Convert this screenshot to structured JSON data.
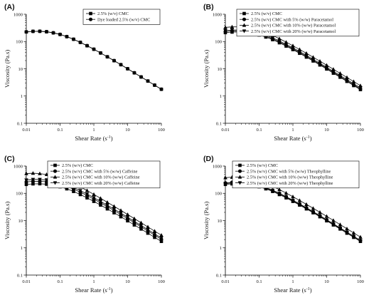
{
  "chart_data": [
    {
      "type": "line",
      "panel_label": "(A)",
      "xlabel": "Shear Rate (s",
      "xlabel_sup": "-1",
      "xlabel_end": ")",
      "ylabel": "Viscosity (Pa.s)",
      "xscale": "log",
      "yscale": "log",
      "xlim": [
        0.01,
        100
      ],
      "ylim": [
        0.1,
        1000
      ],
      "xticks": [
        "0.01",
        "0.1",
        "1",
        "10",
        "100"
      ],
      "yticks": [
        "0.1",
        "1",
        "10",
        "100",
        "1000"
      ],
      "grid": false,
      "legend_position": "top-right",
      "series": [
        {
          "name": "2.5% (w/v) CMC",
          "marker": "square",
          "x": [
            0.01,
            0.0158,
            0.0251,
            0.0398,
            0.0631,
            0.1,
            0.158,
            0.251,
            0.398,
            0.631,
            1,
            1.58,
            2.51,
            3.98,
            6.31,
            10,
            15.8,
            25.1,
            39.8,
            63.1,
            100
          ],
          "y": [
            225,
            236,
            237,
            228,
            208,
            182,
            151,
            121,
            93,
            70,
            52,
            38,
            27.5,
            19.8,
            14.1,
            10,
            7.1,
            5.0,
            3.55,
            2.5,
            1.77
          ]
        },
        {
          "name": "Dye loaded 2.5% (w/v) CMC",
          "marker": "circle",
          "x": [
            0.01,
            0.0158,
            0.0251,
            0.0398,
            0.0631,
            0.1,
            0.158,
            0.251,
            0.398,
            0.631,
            1,
            1.58,
            2.51,
            3.98,
            6.31,
            10,
            15.8,
            25.1,
            39.8,
            63.1,
            100
          ],
          "y": [
            225,
            236,
            237,
            228,
            208,
            182,
            151,
            121,
            93,
            70,
            52,
            38,
            27.5,
            19.8,
            14.1,
            10,
            7.1,
            5.0,
            3.55,
            2.5,
            1.77
          ]
        }
      ]
    },
    {
      "type": "line",
      "panel_label": "(B)",
      "xlabel": "Shear Rate (s",
      "xlabel_sup": "-1",
      "xlabel_end": ")",
      "ylabel": "Viscosity (Pa.s)",
      "xscale": "log",
      "yscale": "log",
      "xlim": [
        0.01,
        100
      ],
      "ylim": [
        0.1,
        1000
      ],
      "xticks": [
        "0.01",
        "0.1",
        "1",
        "10",
        "100"
      ],
      "yticks": [
        "0.1",
        "1",
        "10",
        "100",
        "1000"
      ],
      "grid": false,
      "legend_position": "top-right",
      "series": [
        {
          "name": "2.5% (w/v) CMC",
          "marker": "square",
          "x": [
            0.01,
            0.0158,
            0.0251,
            0.0398,
            0.0631,
            0.1,
            0.158,
            0.251,
            0.398,
            0.631,
            1,
            1.58,
            2.51,
            3.98,
            6.31,
            10,
            15.8,
            25.1,
            39.8,
            63.1,
            100
          ],
          "y": [
            212,
            222,
            224,
            216,
            198,
            174,
            146,
            117,
            90,
            68,
            50.5,
            37,
            26.8,
            19.3,
            13.8,
            9.8,
            6.9,
            4.9,
            3.45,
            2.42,
            1.72
          ]
        },
        {
          "name": "2.5% (w/v) CMC with 5% (w/w) Paracetamol",
          "marker": "circle",
          "x": [
            0.01,
            0.0158,
            0.0251,
            0.0398,
            0.0631,
            0.1,
            0.158,
            0.251,
            0.398,
            0.631,
            1,
            1.58,
            2.51,
            3.98,
            6.31,
            10,
            15.8,
            25.1,
            39.8,
            63.1,
            100
          ],
          "y": [
            232,
            243,
            245,
            236,
            216,
            189,
            157,
            126,
            97,
            73,
            54,
            39.5,
            28.6,
            20.6,
            14.7,
            10.4,
            7.4,
            5.2,
            3.66,
            2.58,
            1.82
          ]
        },
        {
          "name": "2.5% (w/v) CMC with 10% (w/w) Paracetamol",
          "marker": "triangle-up",
          "x": [
            0.01,
            0.0158,
            0.0251,
            0.0398,
            0.0631,
            0.1,
            0.158,
            0.251,
            0.398,
            0.631,
            1,
            1.58,
            2.51,
            3.98,
            6.31,
            10,
            15.8,
            25.1,
            39.8,
            63.1,
            100
          ],
          "y": [
            330,
            345,
            344,
            328,
            297,
            257,
            211,
            167,
            127,
            95,
            70,
            51,
            37,
            26.5,
            19,
            13.5,
            9.6,
            6.8,
            4.8,
            3.4,
            2.4
          ]
        },
        {
          "name": "2.5% (w/v) CMC with 20% (w/w) Paracetamol",
          "marker": "triangle-down",
          "x": [
            0.01,
            0.0158,
            0.0251,
            0.0398,
            0.0631,
            0.1,
            0.158,
            0.251,
            0.398,
            0.631,
            1,
            1.58,
            2.51,
            3.98,
            6.31,
            10,
            15.8,
            25.1,
            39.8,
            63.1,
            100
          ],
          "y": [
            252,
            264,
            265,
            256,
            234,
            205,
            170,
            136,
            105,
            79,
            58.5,
            42.8,
            31,
            22.3,
            15.9,
            11.3,
            8.0,
            5.65,
            4.0,
            2.8,
            2.0
          ]
        }
      ]
    },
    {
      "type": "line",
      "panel_label": "(C)",
      "xlabel": "Shear Rate (s",
      "xlabel_sup": "-1",
      "xlabel_end": ")",
      "ylabel": "Viscosity (Pa.s)",
      "xscale": "log",
      "yscale": "log",
      "xlim": [
        0.01,
        100
      ],
      "ylim": [
        0.1,
        1000
      ],
      "xticks": [
        "0.01",
        "0.1",
        "1",
        "10",
        "100"
      ],
      "yticks": [
        "0.1",
        "1",
        "10",
        "100",
        "1000"
      ],
      "grid": false,
      "legend_position": "top-right",
      "series": [
        {
          "name": "2.5% (w/v) CMC",
          "marker": "square",
          "x": [
            0.01,
            0.0158,
            0.0251,
            0.0398,
            0.0631,
            0.1,
            0.158,
            0.251,
            0.398,
            0.631,
            1,
            1.58,
            2.51,
            3.98,
            6.31,
            10,
            15.8,
            25.1,
            39.8,
            63.1,
            100
          ],
          "y": [
            212,
            222,
            224,
            216,
            198,
            174,
            146,
            117,
            90,
            68,
            50.5,
            37,
            26.8,
            19.3,
            13.8,
            9.8,
            6.9,
            4.9,
            3.45,
            2.42,
            1.72
          ]
        },
        {
          "name": "2.5% (w/v) CMC with 5% (w/w) Caffeine",
          "marker": "circle",
          "x": [
            0.01,
            0.0158,
            0.0251,
            0.0398,
            0.0631,
            0.1,
            0.158,
            0.251,
            0.398,
            0.631,
            1,
            1.58,
            2.51,
            3.98,
            6.31,
            10,
            15.8,
            25.1,
            39.8,
            63.1,
            100
          ],
          "y": [
            262,
            275,
            276,
            266,
            243,
            213,
            177,
            142,
            110,
            83,
            61,
            44.7,
            32.4,
            23.3,
            16.6,
            11.8,
            8.4,
            5.9,
            4.17,
            2.93,
            2.06
          ]
        },
        {
          "name": "2.5% (w/v) CMC with 10% (w/w) Caffeine",
          "marker": "triangle-up",
          "x": [
            0.01,
            0.0158,
            0.0251,
            0.0398,
            0.0631,
            0.1,
            0.158,
            0.251,
            0.398,
            0.631,
            1,
            1.58,
            2.51,
            3.98,
            6.31,
            10,
            15.8,
            25.1,
            39.8,
            63.1,
            100
          ],
          "y": [
            530,
            545,
            528,
            490,
            432,
            364,
            293,
            227,
            171,
            126,
            91,
            65.5,
            46.8,
            33.3,
            23.6,
            16.7,
            11.8,
            8.3,
            5.85,
            4.1,
            2.9
          ]
        },
        {
          "name": "2.5% (w/v) CMC with 20% (w/w) Caffeine",
          "marker": "triangle-down",
          "x": [
            0.01,
            0.0158,
            0.0251,
            0.0398,
            0.0631,
            0.1,
            0.158,
            0.251,
            0.398,
            0.631,
            1,
            1.58,
            2.51,
            3.98,
            6.31,
            10,
            15.8,
            25.1,
            39.8,
            63.1,
            100
          ],
          "y": [
            308,
            322,
            322,
            309,
            281,
            245,
            203,
            162,
            125,
            94,
            69,
            50.5,
            36.5,
            26.2,
            18.7,
            13.3,
            9.4,
            6.6,
            4.66,
            3.27,
            2.3
          ]
        }
      ]
    },
    {
      "type": "line",
      "panel_label": "(D)",
      "xlabel": "Shear Rate (s",
      "xlabel_sup": "-1",
      "xlabel_end": ")",
      "ylabel": "Viscosity (Pa.s)",
      "xscale": "log",
      "yscale": "log",
      "xlim": [
        0.01,
        100
      ],
      "ylim": [
        0.1,
        1000
      ],
      "xticks": [
        "0.01",
        "0.1",
        "1",
        "10",
        "100"
      ],
      "yticks": [
        "0.1",
        "1",
        "10",
        "100",
        "1000"
      ],
      "grid": false,
      "legend_position": "top-right",
      "series": [
        {
          "name": "2.5% (w/v) CMC",
          "marker": "square",
          "x": [
            0.01,
            0.0158,
            0.0251,
            0.0398,
            0.0631,
            0.1,
            0.158,
            0.251,
            0.398,
            0.631,
            1,
            1.58,
            2.51,
            3.98,
            6.31,
            10,
            15.8,
            25.1,
            39.8,
            63.1,
            100
          ],
          "y": [
            212,
            222,
            224,
            216,
            198,
            174,
            146,
            117,
            90,
            68,
            50.5,
            37,
            26.8,
            19.3,
            13.8,
            9.8,
            6.9,
            4.9,
            3.45,
            2.42,
            1.72
          ]
        },
        {
          "name": "2.5% (w/v) CMC with 5% (w/w) Theophylline",
          "marker": "circle",
          "x": [
            0.01,
            0.0158,
            0.0251,
            0.0398,
            0.0631,
            0.1,
            0.158,
            0.251,
            0.398,
            0.631,
            1,
            1.58,
            2.51,
            3.98,
            6.31,
            10,
            15.8,
            25.1,
            39.8,
            63.1,
            100
          ],
          "y": [
            240,
            252,
            253,
            244,
            223,
            195,
            162,
            130,
            100,
            75.5,
            55.7,
            40.8,
            29.5,
            21.2,
            15.1,
            10.7,
            7.6,
            5.35,
            3.77,
            2.65,
            1.87
          ]
        },
        {
          "name": "2.5% (w/v) CMC with 10% (w/w) Theophylline",
          "marker": "triangle-up",
          "x": [
            0.01,
            0.0158,
            0.0251,
            0.0398,
            0.0631,
            0.1,
            0.158,
            0.251,
            0.398,
            0.631,
            1,
            1.58,
            2.51,
            3.98,
            6.31,
            10,
            15.8,
            25.1,
            39.8,
            63.1,
            100
          ],
          "y": [
            375,
            390,
            385,
            362,
            324,
            278,
            228,
            180,
            137,
            102,
            75,
            54.5,
            39.3,
            28.2,
            20.1,
            14.3,
            10.1,
            7.1,
            5.0,
            3.52,
            2.48
          ]
        },
        {
          "name": "2.5% (w/v) CMC with 20% (w/w) Theophylline",
          "marker": "triangle-down",
          "x": [
            0.01,
            0.0158,
            0.0251,
            0.0398,
            0.0631,
            0.1,
            0.158,
            0.251,
            0.398,
            0.631,
            1,
            1.58,
            2.51,
            3.98,
            6.31,
            10,
            15.8,
            25.1,
            39.8,
            63.1,
            100
          ],
          "y": [
            228,
            239,
            240,
            232,
            212,
            186,
            155,
            124,
            96,
            72.5,
            53.5,
            39.2,
            28.4,
            20.4,
            14.6,
            10.4,
            7.35,
            5.2,
            3.66,
            2.57,
            1.82
          ]
        }
      ]
    }
  ]
}
